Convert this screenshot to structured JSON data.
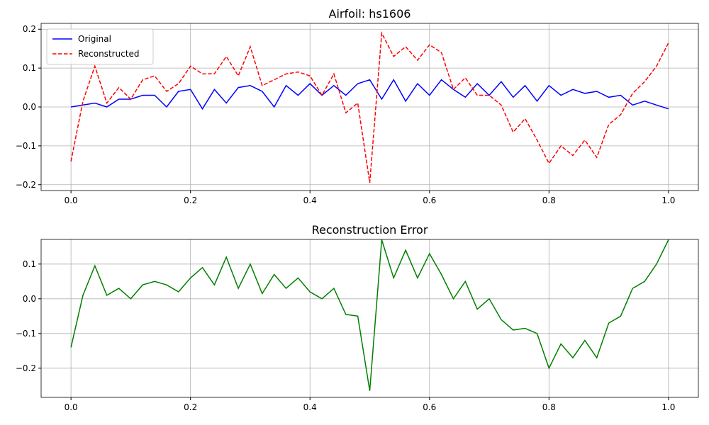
{
  "chart_data": [
    {
      "type": "line",
      "title": "Airfoil: hs1606",
      "x": [
        0,
        0.02,
        0.04,
        0.06,
        0.08,
        0.1,
        0.12,
        0.14,
        0.16,
        0.18,
        0.2,
        0.22,
        0.24,
        0.26,
        0.28,
        0.3,
        0.32,
        0.34,
        0.36,
        0.38,
        0.4,
        0.42,
        0.44,
        0.46,
        0.48,
        0.5,
        0.52,
        0.54,
        0.56,
        0.58,
        0.6,
        0.62,
        0.64,
        0.66,
        0.68,
        0.7,
        0.72,
        0.74,
        0.76,
        0.78,
        0.8,
        0.82,
        0.84,
        0.86,
        0.88,
        0.9,
        0.92,
        0.94,
        0.96,
        0.98,
        1.0
      ],
      "series": [
        {
          "name": "Original",
          "color": "#0000ff",
          "dash": false,
          "values": [
            0.0,
            0.005,
            0.01,
            0.0,
            0.02,
            0.02,
            0.03,
            0.03,
            0.0,
            0.04,
            0.045,
            -0.005,
            0.045,
            0.01,
            0.05,
            0.055,
            0.04,
            0.0,
            0.055,
            0.03,
            0.06,
            0.03,
            0.055,
            0.03,
            0.06,
            0.07,
            0.02,
            0.07,
            0.015,
            0.06,
            0.03,
            0.07,
            0.045,
            0.025,
            0.06,
            0.03,
            0.065,
            0.025,
            0.055,
            0.015,
            0.055,
            0.03,
            0.045,
            0.035,
            0.04,
            0.025,
            0.03,
            0.005,
            0.015,
            0.005,
            -0.005
          ]
        },
        {
          "name": "Reconstructed",
          "color": "#ff0000",
          "dash": true,
          "values": [
            -0.14,
            0.015,
            0.105,
            0.01,
            0.05,
            0.02,
            0.07,
            0.08,
            0.04,
            0.06,
            0.105,
            0.085,
            0.085,
            0.13,
            0.08,
            0.155,
            0.055,
            0.07,
            0.085,
            0.09,
            0.08,
            0.03,
            0.085,
            -0.015,
            0.01,
            -0.195,
            0.19,
            0.13,
            0.155,
            0.12,
            0.16,
            0.14,
            0.045,
            0.075,
            0.03,
            0.03,
            0.005,
            -0.065,
            -0.03,
            -0.085,
            -0.145,
            -0.1,
            -0.125,
            -0.085,
            -0.13,
            -0.045,
            -0.02,
            0.035,
            0.065,
            0.105,
            0.165
          ]
        }
      ],
      "xlim": [
        -0.05,
        1.05
      ],
      "ylim": [
        -0.215,
        0.215
      ],
      "xticks": [
        {
          "value": 0,
          "label": "0.0"
        },
        0.2,
        0.4,
        0.6,
        0.8,
        {
          "value": 1,
          "label": "1.0"
        }
      ],
      "yticks": [
        {
          "value": -0.2,
          "label": "−0.2"
        },
        {
          "value": -0.1,
          "label": "−0.1"
        },
        {
          "value": 0,
          "label": "0.0"
        },
        0.1,
        0.2
      ],
      "grid": true,
      "legend": "upper-left"
    },
    {
      "type": "line",
      "title": "Reconstruction Error",
      "x": [
        0,
        0.02,
        0.04,
        0.06,
        0.08,
        0.1,
        0.12,
        0.14,
        0.16,
        0.18,
        0.2,
        0.22,
        0.24,
        0.26,
        0.28,
        0.3,
        0.32,
        0.34,
        0.36,
        0.38,
        0.4,
        0.42,
        0.44,
        0.46,
        0.48,
        0.5,
        0.52,
        0.54,
        0.56,
        0.58,
        0.6,
        0.62,
        0.64,
        0.66,
        0.68,
        0.7,
        0.72,
        0.74,
        0.76,
        0.78,
        0.8,
        0.82,
        0.84,
        0.86,
        0.88,
        0.9,
        0.92,
        0.94,
        0.96,
        0.98,
        1.0
      ],
      "series": [
        {
          "color": "#008000",
          "dash": false,
          "values": [
            -0.14,
            0.01,
            0.095,
            0.01,
            0.03,
            0.0,
            0.04,
            0.05,
            0.04,
            0.02,
            0.06,
            0.09,
            0.04,
            0.12,
            0.03,
            0.1,
            0.015,
            0.07,
            0.03,
            0.06,
            0.02,
            0.0,
            0.03,
            -0.045,
            -0.05,
            -0.265,
            0.17,
            0.06,
            0.14,
            0.06,
            0.13,
            0.07,
            0.0,
            0.05,
            -0.03,
            0.0,
            -0.06,
            -0.09,
            -0.085,
            -0.1,
            -0.2,
            -0.13,
            -0.17,
            -0.12,
            -0.17,
            -0.07,
            -0.05,
            0.03,
            0.05,
            0.1,
            0.17
          ]
        }
      ],
      "xlim": [
        -0.05,
        1.05
      ],
      "ylim": [
        -0.284,
        0.171
      ],
      "xticks": [
        {
          "value": 0,
          "label": "0.0"
        },
        0.2,
        0.4,
        0.6,
        0.8,
        {
          "value": 1,
          "label": "1.0"
        }
      ],
      "yticks": [
        {
          "value": -0.2,
          "label": "−0.2"
        },
        {
          "value": -0.1,
          "label": "−0.1"
        },
        {
          "value": 0,
          "label": "0.0"
        },
        0.1
      ],
      "grid": true
    }
  ]
}
